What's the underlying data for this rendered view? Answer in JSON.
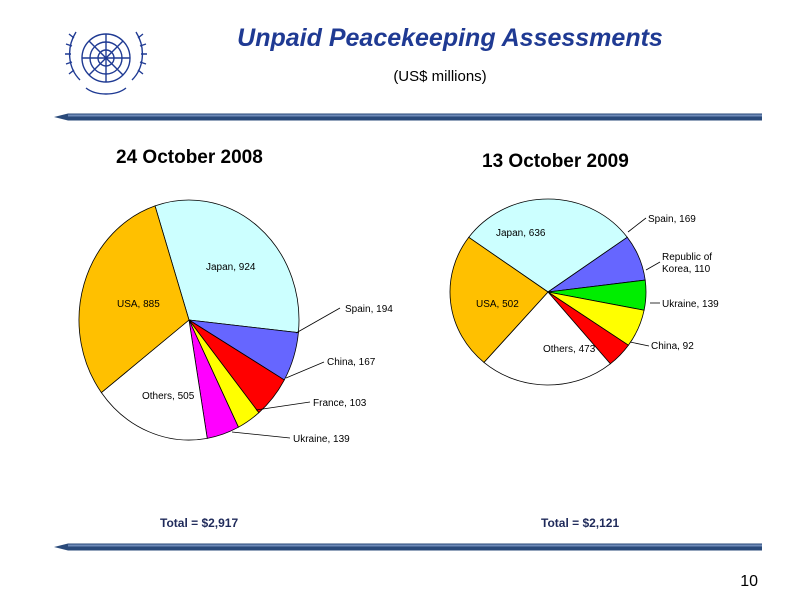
{
  "title": "Unpaid Peacekeeping Assessments",
  "subtitle": "(US$ millions)",
  "page_number": "10",
  "logo": {
    "icon": "un-emblem-icon"
  },
  "colors": {
    "title": "#1f3a93",
    "USA": "#ffc000",
    "Japan": "#ccffff",
    "Spain": "#6666ff",
    "China": "#ff0000",
    "France": "#ffff00",
    "Ukraine": "#ff00ff",
    "Korea": "#00ee00",
    "Others": "#ffffff"
  },
  "chart_data": [
    {
      "type": "pie",
      "title": "24 October 2008",
      "total_label": "Total = $2,917",
      "slices": [
        {
          "label": "Japan",
          "text": "Japan, 924",
          "value": 924,
          "color": "#ccffff"
        },
        {
          "label": "Spain",
          "text": "Spain, 194",
          "value": 194,
          "color": "#6666ff"
        },
        {
          "label": "China",
          "text": "China, 167",
          "value": 167,
          "color": "#ff0000"
        },
        {
          "label": "France",
          "text": "France, 103",
          "value": 103,
          "color": "#ffff00"
        },
        {
          "label": "Ukraine",
          "text": "Ukraine, 139",
          "value": 139,
          "color": "#ff00ff"
        },
        {
          "label": "Others",
          "text": "Others, 505",
          "value": 505,
          "color": "#ffffff"
        },
        {
          "label": "USA",
          "text": "USA, 885",
          "value": 885,
          "color": "#ffc000"
        }
      ]
    },
    {
      "type": "pie",
      "title": "13 October 2009",
      "total_label": "Total = $2,121",
      "slices": [
        {
          "label": "Japan",
          "text": "Japan, 636",
          "value": 636,
          "color": "#ccffff"
        },
        {
          "label": "Spain",
          "text": "Spain, 169",
          "value": 169,
          "color": "#6666ff"
        },
        {
          "label": "Republic of Korea",
          "text": "Republic of Korea, 110",
          "value": 110,
          "color": "#00ee00"
        },
        {
          "label": "Ukraine",
          "text": "Ukraine, 139",
          "value": 139,
          "color": "#ffff00"
        },
        {
          "label": "China",
          "text": "China, 92",
          "value": 92,
          "color": "#ff0000"
        },
        {
          "label": "Others",
          "text": "Others, 473",
          "value": 473,
          "color": "#ffffff"
        },
        {
          "label": "USA",
          "text": "USA, 502",
          "value": 502,
          "color": "#ffc000"
        }
      ]
    }
  ]
}
